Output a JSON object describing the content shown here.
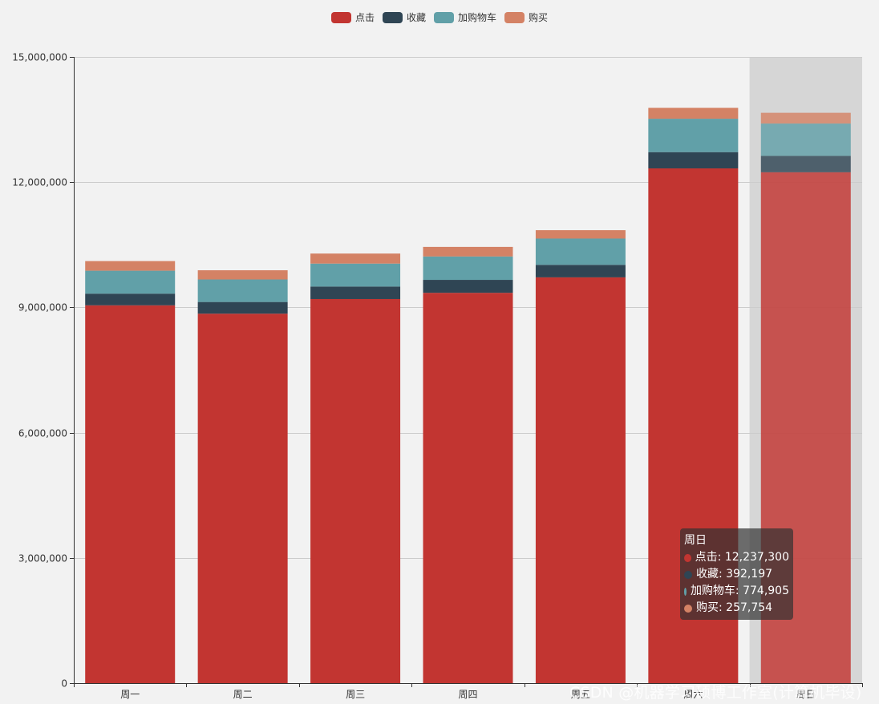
{
  "colors": {
    "click": "#c23531",
    "collect": "#2f4554",
    "cart": "#61a0a8",
    "buy": "#d48265",
    "grid": "#cccccc",
    "axis": "#333333",
    "highlight_band": "#d6d6d6"
  },
  "legend": [
    {
      "name": "点击",
      "color": "#c23531"
    },
    {
      "name": "收藏",
      "color": "#2f4554"
    },
    {
      "name": "加购物车",
      "color": "#61a0a8"
    },
    {
      "name": "购买",
      "color": "#d48265"
    }
  ],
  "chart_data": {
    "type": "bar",
    "stacked": true,
    "title": "",
    "xlabel": "",
    "ylabel": "",
    "ylim": [
      0,
      15000000
    ],
    "yticks": [
      0,
      3000000,
      6000000,
      9000000,
      12000000,
      15000000
    ],
    "ytick_labels": [
      "0",
      "3,000,000",
      "6,000,000",
      "9,000,000",
      "12,000,000",
      "15,000,000"
    ],
    "grid": true,
    "legend_position": "top-center",
    "categories": [
      "周一",
      "周二",
      "周三",
      "周四",
      "周五",
      "周六",
      "周日"
    ],
    "highlighted_category": "周日",
    "series": [
      {
        "name": "点击",
        "values": [
          9050000,
          8850000,
          9200000,
          9350000,
          9720000,
          12330000,
          12237300
        ]
      },
      {
        "name": "收藏",
        "values": [
          280000,
          280000,
          300000,
          310000,
          300000,
          390000,
          392197
        ]
      },
      {
        "name": "加购物车",
        "values": [
          550000,
          540000,
          550000,
          560000,
          630000,
          800000,
          774905
        ]
      },
      {
        "name": "购买",
        "values": [
          230000,
          220000,
          240000,
          230000,
          200000,
          260000,
          257754
        ]
      }
    ]
  },
  "tooltip": {
    "title": "周日",
    "rows": [
      {
        "text": "点击: 12,237,300",
        "color": "#c23531"
      },
      {
        "text": "收藏: 392,197",
        "color": "#2f4554"
      },
      {
        "text": "加购物车: 774,905",
        "color": "#61a0a8"
      },
      {
        "text": "购买: 257,754",
        "color": "#d48265"
      }
    ]
  },
  "watermark": "CSDN @机器学习硕博工作室(计算机毕设)"
}
